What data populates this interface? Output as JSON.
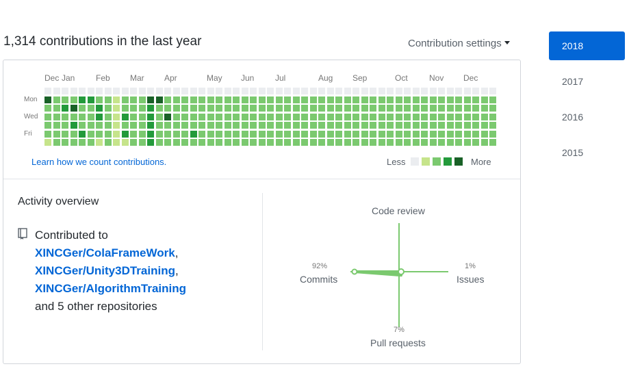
{
  "header": {
    "contributions_text": "1,314 contributions in the last year",
    "settings_label": "Contribution settings"
  },
  "calendar": {
    "months": [
      "Dec",
      "Jan",
      "Feb",
      "Mar",
      "Apr",
      "May",
      "Jun",
      "Jul",
      "Aug",
      "Sep",
      "Oct",
      "Nov",
      "Dec"
    ],
    "days": [
      "Mon",
      "Wed",
      "Fri"
    ],
    "learn_link": "Learn how we count contributions.",
    "legend_less": "Less",
    "legend_more": "More",
    "colors": [
      "#ebedf0",
      "#c6e48b",
      "#7bc96f",
      "#239a3b",
      "#196127"
    ],
    "weeks": [
      [
        0,
        4,
        2,
        2,
        2,
        2,
        1
      ],
      [
        0,
        2,
        2,
        2,
        2,
        2,
        2
      ],
      [
        0,
        2,
        3,
        2,
        2,
        2,
        2
      ],
      [
        0,
        2,
        4,
        2,
        3,
        2,
        2
      ],
      [
        0,
        3,
        2,
        2,
        2,
        3,
        2
      ],
      [
        0,
        3,
        2,
        2,
        2,
        2,
        2
      ],
      [
        0,
        2,
        3,
        3,
        2,
        2,
        1
      ],
      [
        0,
        2,
        2,
        2,
        2,
        2,
        2
      ],
      [
        0,
        1,
        1,
        1,
        1,
        1,
        1
      ],
      [
        0,
        2,
        2,
        3,
        2,
        3,
        1
      ],
      [
        0,
        2,
        2,
        2,
        2,
        2,
        2
      ],
      [
        0,
        2,
        2,
        2,
        2,
        2,
        2
      ],
      [
        0,
        4,
        3,
        3,
        3,
        3,
        3
      ],
      [
        0,
        4,
        2,
        2,
        2,
        2,
        2
      ],
      [
        0,
        2,
        2,
        4,
        2,
        2,
        2
      ],
      [
        0,
        2,
        2,
        2,
        2,
        2,
        2
      ],
      [
        0,
        2,
        2,
        2,
        2,
        2,
        2
      ],
      [
        0,
        2,
        2,
        2,
        2,
        3,
        2
      ],
      [
        0,
        2,
        2,
        2,
        2,
        2,
        2
      ],
      [
        0,
        2,
        2,
        2,
        2,
        2,
        2
      ],
      [
        0,
        2,
        2,
        2,
        2,
        2,
        2
      ],
      [
        0,
        2,
        2,
        2,
        2,
        2,
        2
      ],
      [
        0,
        2,
        2,
        2,
        2,
        2,
        2
      ],
      [
        0,
        2,
        2,
        2,
        2,
        2,
        2
      ],
      [
        0,
        2,
        2,
        2,
        2,
        2,
        2
      ],
      [
        0,
        2,
        2,
        2,
        2,
        2,
        2
      ],
      [
        0,
        2,
        2,
        2,
        2,
        2,
        2
      ],
      [
        0,
        2,
        2,
        2,
        2,
        2,
        2
      ],
      [
        0,
        2,
        2,
        2,
        2,
        2,
        2
      ],
      [
        0,
        2,
        2,
        2,
        2,
        2,
        2
      ],
      [
        0,
        2,
        2,
        2,
        2,
        2,
        2
      ],
      [
        0,
        2,
        2,
        2,
        2,
        2,
        2
      ],
      [
        0,
        2,
        2,
        2,
        2,
        2,
        2
      ],
      [
        0,
        2,
        2,
        2,
        2,
        2,
        2
      ],
      [
        0,
        2,
        2,
        2,
        2,
        2,
        2
      ],
      [
        0,
        2,
        2,
        2,
        2,
        2,
        2
      ],
      [
        0,
        2,
        2,
        2,
        2,
        2,
        2
      ],
      [
        0,
        2,
        2,
        2,
        2,
        2,
        2
      ],
      [
        0,
        2,
        2,
        2,
        2,
        2,
        2
      ],
      [
        0,
        2,
        2,
        2,
        2,
        2,
        2
      ],
      [
        0,
        2,
        2,
        2,
        2,
        2,
        2
      ],
      [
        0,
        2,
        2,
        2,
        2,
        2,
        2
      ],
      [
        0,
        2,
        2,
        2,
        2,
        2,
        2
      ],
      [
        0,
        2,
        2,
        2,
        2,
        2,
        2
      ],
      [
        0,
        2,
        2,
        2,
        2,
        2,
        2
      ],
      [
        0,
        2,
        2,
        2,
        2,
        2,
        2
      ],
      [
        0,
        2,
        2,
        2,
        2,
        2,
        2
      ],
      [
        0,
        2,
        2,
        2,
        2,
        2,
        2
      ],
      [
        0,
        2,
        2,
        2,
        2,
        2,
        2
      ],
      [
        0,
        2,
        2,
        2,
        2,
        2,
        2
      ],
      [
        0,
        2,
        2,
        2,
        2,
        2,
        2
      ],
      [
        0,
        2,
        2,
        2,
        2,
        2,
        2
      ],
      [
        0,
        2,
        2,
        2,
        2,
        2,
        2
      ]
    ]
  },
  "activity": {
    "title": "Activity overview",
    "contributed_to": "Contributed to",
    "repos": [
      "XINCGer/ColaFrameWork",
      "XINCGer/Unity3DTraining",
      "XINCGer/AlgorithmTraining"
    ],
    "others": "and 5 other repositories",
    "repo_icon": "repo-icon",
    "radar": {
      "code_review": "Code review",
      "commits": "Commits",
      "commits_pct": "92%",
      "issues": "Issues",
      "issues_pct": "1%",
      "pull_requests": "Pull requests",
      "pull_requests_pct": "7%",
      "values": {
        "commits": 92,
        "issues": 1,
        "pull_requests": 7,
        "code_review": 0
      },
      "color": "#7bc96f"
    }
  },
  "years": [
    "2018",
    "2017",
    "2016",
    "2015"
  ],
  "selected_year": "2018",
  "accent_color": "#0366d6"
}
